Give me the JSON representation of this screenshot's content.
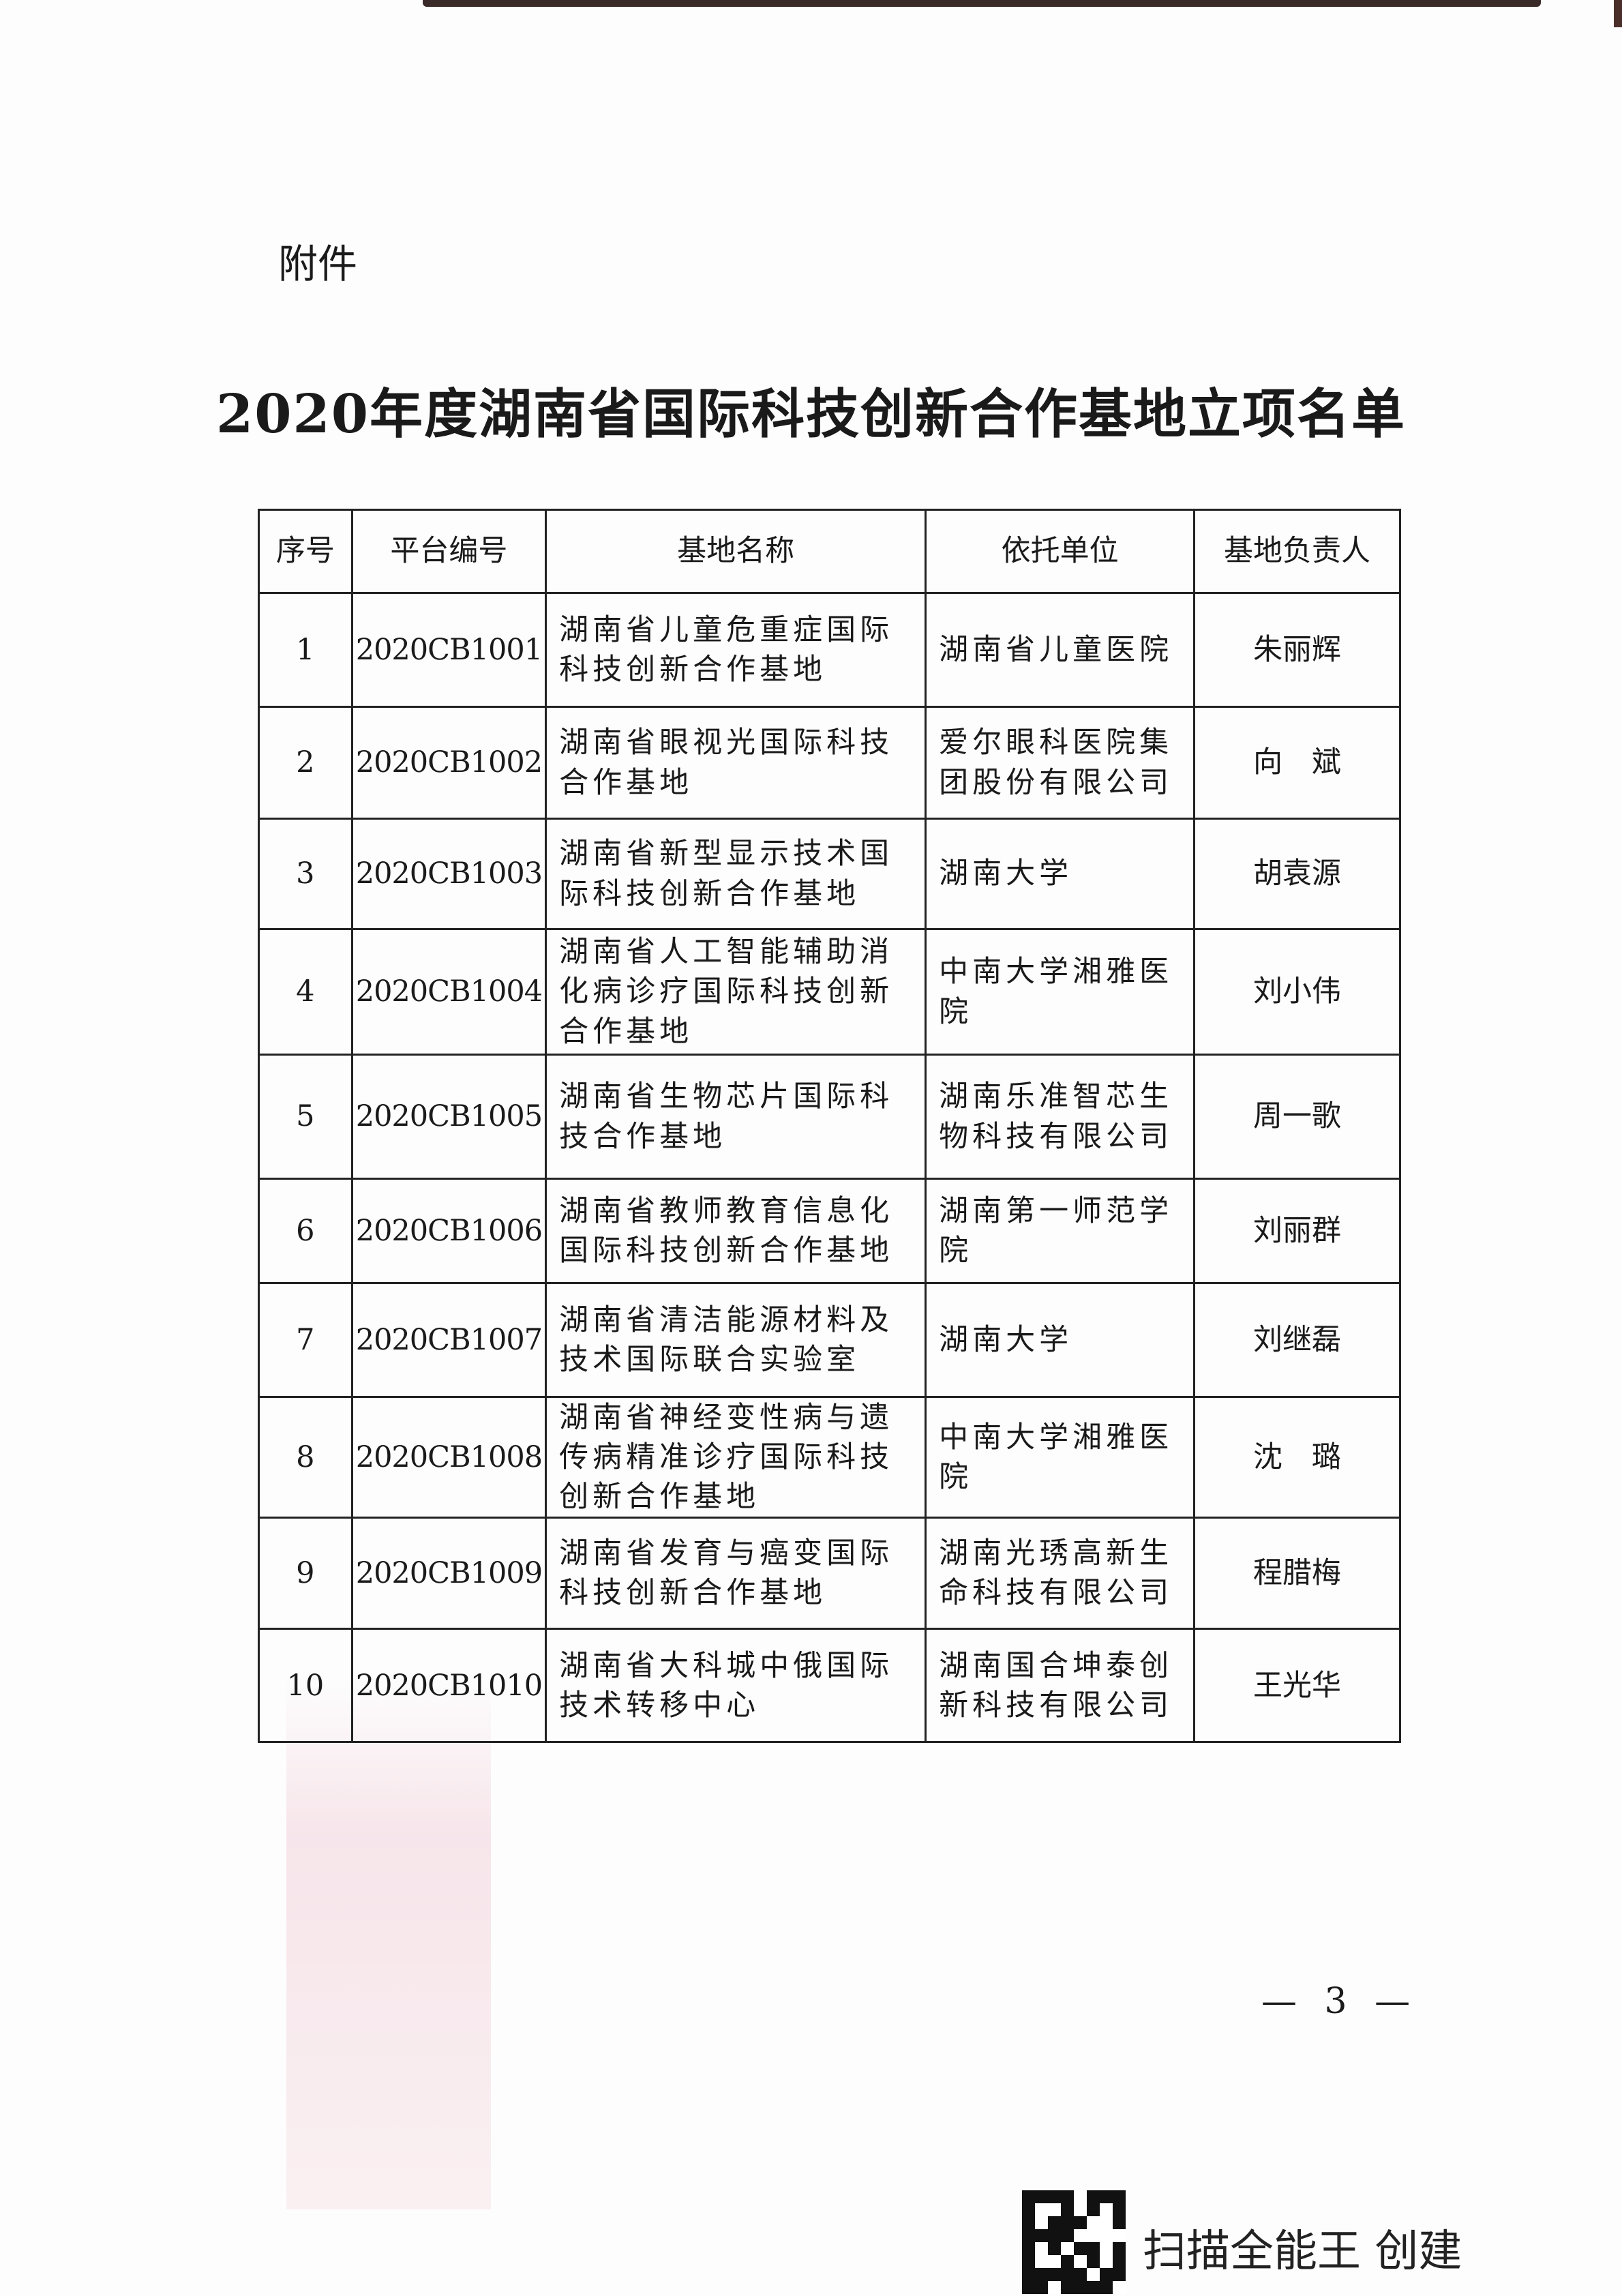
{
  "attachment_label": "附件",
  "title": "2020年度湖南省国际科技创新合作基地立项名单",
  "table": {
    "headers": [
      "序号",
      "平台编号",
      "基地名称",
      "依托单位",
      "基地负责人"
    ],
    "rows": [
      {
        "no": "1",
        "code": "2020CB1001",
        "name": "湖南省儿童危重症国际科技创新合作基地",
        "unit": "湖南省儿童医院",
        "leader": "朱丽辉"
      },
      {
        "no": "2",
        "code": "2020CB1002",
        "name": "湖南省眼视光国际科技合作基地",
        "unit": "爱尔眼科医院集团股份有限公司",
        "leader": "向　斌"
      },
      {
        "no": "3",
        "code": "2020CB1003",
        "name": "湖南省新型显示技术国际科技创新合作基地",
        "unit": "湖南大学",
        "leader": "胡袁源"
      },
      {
        "no": "4",
        "code": "2020CB1004",
        "name": "湖南省人工智能辅助消化病诊疗国际科技创新合作基地",
        "unit": "中南大学湘雅医院",
        "leader": "刘小伟"
      },
      {
        "no": "5",
        "code": "2020CB1005",
        "name": "湖南省生物芯片国际科技合作基地",
        "unit": "湖南乐准智芯生物科技有限公司",
        "leader": "周一歌"
      },
      {
        "no": "6",
        "code": "2020CB1006",
        "name": "湖南省教师教育信息化国际科技创新合作基地",
        "unit": "湖南第一师范学院",
        "leader": "刘丽群"
      },
      {
        "no": "7",
        "code": "2020CB1007",
        "name": "湖南省清洁能源材料及技术国际联合实验室",
        "unit": "湖南大学",
        "leader": "刘继磊"
      },
      {
        "no": "8",
        "code": "2020CB1008",
        "name": "湖南省神经变性病与遗传病精准诊疗国际科技创新合作基地",
        "unit": "中南大学湘雅医院",
        "leader": "沈　璐"
      },
      {
        "no": "9",
        "code": "2020CB1009",
        "name": "湖南省发育与癌变国际科技创新合作基地",
        "unit": "湖南光琇高新生命科技有限公司",
        "leader": "程腊梅"
      },
      {
        "no": "10",
        "code": "2020CB1010",
        "name": "湖南省大科城中俄国际技术转移中心",
        "unit": "湖南国合坤泰创新科技有限公司",
        "leader": "王光华"
      }
    ]
  },
  "page_number": "— 3 —",
  "watermark": {
    "text": "扫描全能王 创建",
    "icon": "qr-code-icon"
  }
}
